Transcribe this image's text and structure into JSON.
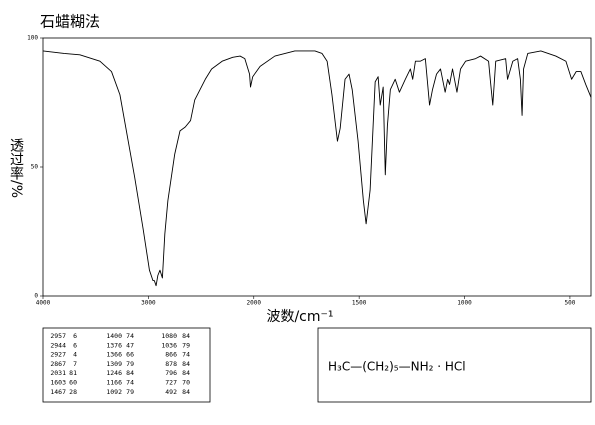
{
  "chart_data": {
    "type": "line",
    "title": "石蜡糊法",
    "xlabel": "波数/cm⁻¹",
    "ylabel": "透过率/%",
    "x": [
      4000,
      3900,
      3800,
      3650,
      3460,
      3350,
      3270,
      3200,
      3130,
      3050,
      2990,
      2957,
      2944,
      2927,
      2910,
      2890,
      2867,
      2844,
      2815,
      2750,
      2700,
      2650,
      2600,
      2560,
      2460,
      2400,
      2300,
      2200,
      2130,
      2085,
      2040,
      2031,
      2010,
      1970,
      1900,
      1805,
      1710,
      1676,
      1652,
      1629,
      1603,
      1590,
      1567,
      1548,
      1533,
      1505,
      1480,
      1467,
      1448,
      1424,
      1410,
      1400,
      1386,
      1376,
      1366,
      1352,
      1329,
      1309,
      1281,
      1257,
      1246,
      1233,
      1210,
      1186,
      1166,
      1152,
      1133,
      1114,
      1092,
      1080,
      1071,
      1057,
      1036,
      1019,
      995,
      948,
      924,
      886,
      878,
      866,
      852,
      805,
      796,
      771,
      748,
      735,
      727,
      720,
      700,
      638,
      567,
      519,
      492,
      470,
      448,
      425,
      400
    ],
    "series": [
      {
        "color": "#000000",
        "values": [
          95,
          94.5,
          94,
          93.5,
          91,
          87,
          78,
          62,
          46,
          26,
          10,
          6,
          6,
          4,
          8,
          10,
          7,
          24,
          37,
          55,
          64,
          65.5,
          68,
          76,
          84,
          88,
          91,
          92.5,
          93,
          92,
          86,
          81,
          85,
          89,
          93,
          95,
          95,
          94,
          91,
          78,
          60,
          65,
          84,
          86,
          80,
          60,
          37,
          28,
          41,
          83,
          85,
          74,
          81,
          47,
          66,
          80,
          84,
          79,
          84,
          88,
          84,
          91,
          91,
          92,
          74,
          80,
          86,
          88,
          79,
          84,
          82,
          88,
          79,
          88,
          91,
          92,
          93,
          91,
          84,
          74,
          91,
          92,
          84,
          91,
          92,
          84,
          70,
          88,
          94,
          95,
          93,
          91,
          84,
          87,
          87,
          82,
          77
        ]
      }
    ],
    "xlim": [
      4000,
      400
    ],
    "ylim": [
      0,
      100
    ],
    "xticks": [
      4000,
      3000,
      2000,
      1500,
      1000,
      500
    ],
    "yticks": [
      0,
      50,
      100
    ]
  },
  "peak_table": [
    [
      2957,
      6
    ],
    [
      2944,
      6
    ],
    [
      2927,
      4
    ],
    [
      2867,
      7
    ],
    [
      2031,
      81
    ],
    [
      1603,
      60
    ],
    [
      1467,
      28
    ],
    [
      1400,
      74
    ],
    [
      1376,
      47
    ],
    [
      1366,
      66
    ],
    [
      1309,
      79
    ],
    [
      1246,
      84
    ],
    [
      1166,
      74
    ],
    [
      1092,
      79
    ],
    [
      1080,
      84
    ],
    [
      1036,
      79
    ],
    [
      866,
      74
    ],
    [
      878,
      84
    ],
    [
      796,
      84
    ],
    [
      727,
      70
    ],
    [
      492,
      84
    ]
  ],
  "structure": "H₃C—(CH₂)₅—NH₂  ·  HCl"
}
